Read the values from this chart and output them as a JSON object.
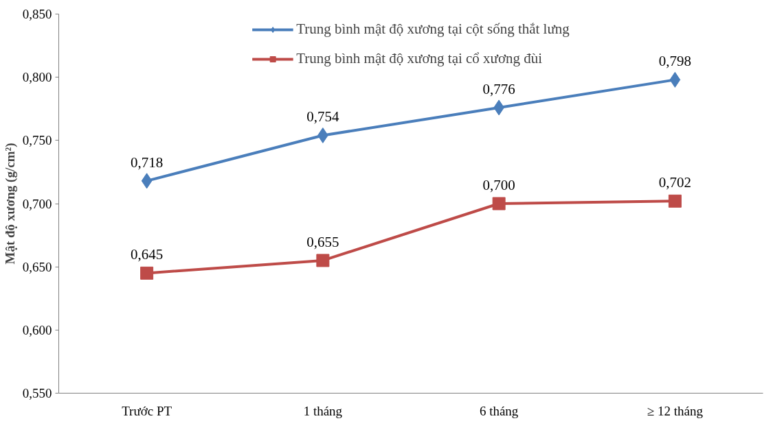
{
  "chart_data": {
    "type": "line",
    "ylabel": "Mật độ xương (g/cm²)",
    "categories": [
      "Trước PT",
      "1 tháng",
      "6 tháng",
      "≥ 12 tháng"
    ],
    "series": [
      {
        "name": "Trung bình mật độ xương tại cột sống thắt lưng",
        "color": "#4a7ebb",
        "marker": "diamond",
        "values": [
          0.718,
          0.754,
          0.776,
          0.798
        ],
        "value_labels": [
          "0,718",
          "0,754",
          "0,776",
          "0,798"
        ]
      },
      {
        "name": "Trung bình mật độ xương tại cổ xương đùi",
        "color": "#be4b48",
        "marker": "square",
        "values": [
          0.645,
          0.655,
          0.7,
          0.702
        ],
        "value_labels": [
          "0,645",
          "0,655",
          "0,700",
          "0,702"
        ]
      }
    ],
    "ylim": [
      0.55,
      0.85
    ],
    "yticks": [
      {
        "value": 0.55,
        "label": "0,550"
      },
      {
        "value": 0.6,
        "label": "0,600"
      },
      {
        "value": 0.65,
        "label": "0,650"
      },
      {
        "value": 0.7,
        "label": "0,700"
      },
      {
        "value": 0.75,
        "label": "0,750"
      },
      {
        "value": 0.8,
        "label": "0,800"
      },
      {
        "value": 0.85,
        "label": "0,850"
      }
    ],
    "grid": false,
    "legend": "top",
    "line_style": "solid"
  }
}
